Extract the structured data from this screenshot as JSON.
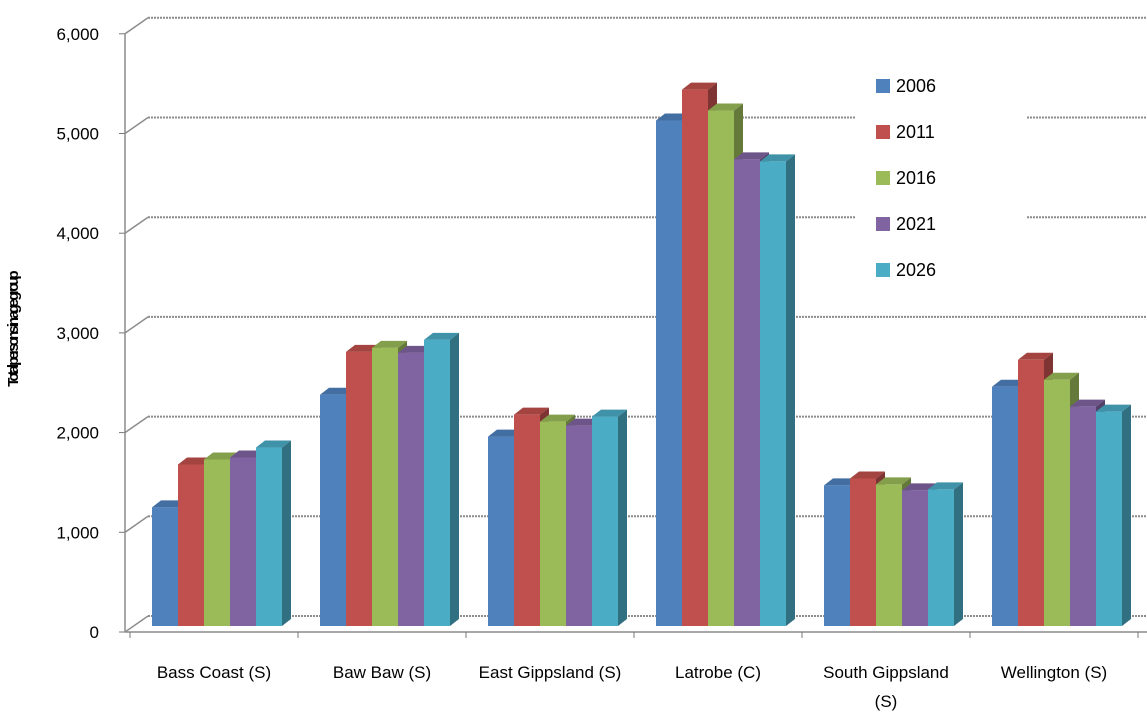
{
  "chart_data": {
    "type": "bar",
    "title": "",
    "xlabel": "",
    "ylabel": "Total persons in age group",
    "categories": [
      "Bass Coast (S)",
      "Baw Baw (S)",
      "East Gippsland (S)",
      "Latrobe (C)",
      "South Gippsland (S)",
      "Wellington (S)"
    ],
    "series": [
      {
        "name": "2006",
        "color": "#4F81BD",
        "values": [
          1190,
          2320,
          1900,
          5070,
          1410,
          2400
        ]
      },
      {
        "name": "2011",
        "color": "#C0504D",
        "values": [
          1620,
          2750,
          2120,
          5380,
          1480,
          2670
        ]
      },
      {
        "name": "2016",
        "color": "#9BBB59",
        "values": [
          1670,
          2790,
          2050,
          5170,
          1420,
          2470
        ]
      },
      {
        "name": "2021",
        "color": "#8064A2",
        "values": [
          1690,
          2740,
          2010,
          4680,
          1360,
          2200
        ]
      },
      {
        "name": "2026",
        "color": "#4BACC6",
        "values": [
          1790,
          2870,
          2100,
          4660,
          1370,
          2150
        ]
      }
    ],
    "ylim": [
      0,
      6000
    ],
    "yticks": [
      "0",
      "1,000",
      "2,000",
      "3,000",
      "4,000",
      "5,000",
      "6,000"
    ],
    "grid": true,
    "legend": "top-right",
    "style": "3d-clustered-column"
  }
}
